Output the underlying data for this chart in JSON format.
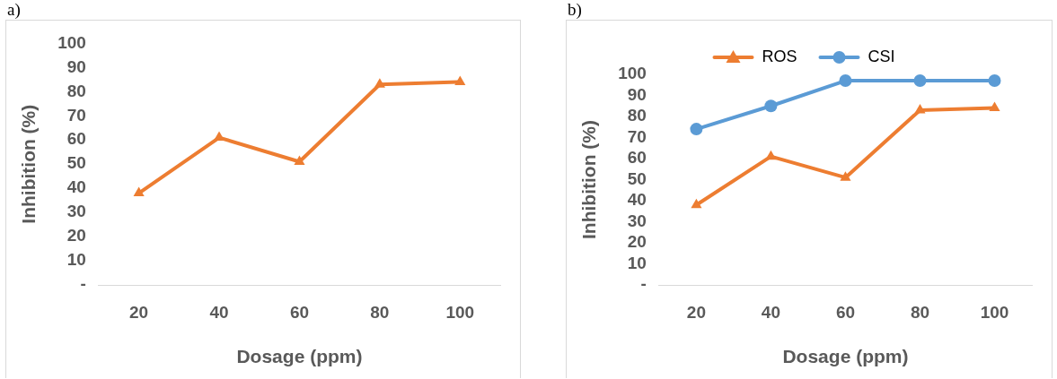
{
  "chart_data": [
    {
      "type": "line",
      "title": "a)",
      "xlabel": "Dosage (ppm)",
      "ylabel": "Inhibition (%)",
      "categories": [
        "20",
        "40",
        "60",
        "80",
        "100"
      ],
      "series": [
        {
          "color": "#ed7d31",
          "marker": "triangle",
          "values": [
            38,
            61,
            51,
            83,
            84
          ]
        }
      ],
      "ylim": [
        0,
        100
      ],
      "yticks": [
        {
          "value": 0,
          "label": "-"
        },
        10,
        20,
        30,
        40,
        50,
        60,
        70,
        80,
        90,
        100
      ],
      "grid": false,
      "legend": false
    },
    {
      "type": "line",
      "title": "b)",
      "xlabel": "Dosage (ppm)",
      "ylabel": "Inhibition (%)",
      "categories": [
        "20",
        "40",
        "60",
        "80",
        "100"
      ],
      "series": [
        {
          "name": "ROS",
          "color": "#ed7d31",
          "marker": "triangle",
          "values": [
            38,
            61,
            51,
            83,
            84
          ]
        },
        {
          "name": "CSI",
          "color": "#5b9bd5",
          "marker": "circle",
          "values": [
            74,
            85,
            97,
            97,
            97
          ]
        }
      ],
      "ylim": [
        0,
        100
      ],
      "yticks": [
        {
          "value": 0,
          "label": "-"
        },
        10,
        20,
        30,
        40,
        50,
        60,
        70,
        80,
        90,
        100
      ],
      "grid": false,
      "legend": "top"
    }
  ]
}
